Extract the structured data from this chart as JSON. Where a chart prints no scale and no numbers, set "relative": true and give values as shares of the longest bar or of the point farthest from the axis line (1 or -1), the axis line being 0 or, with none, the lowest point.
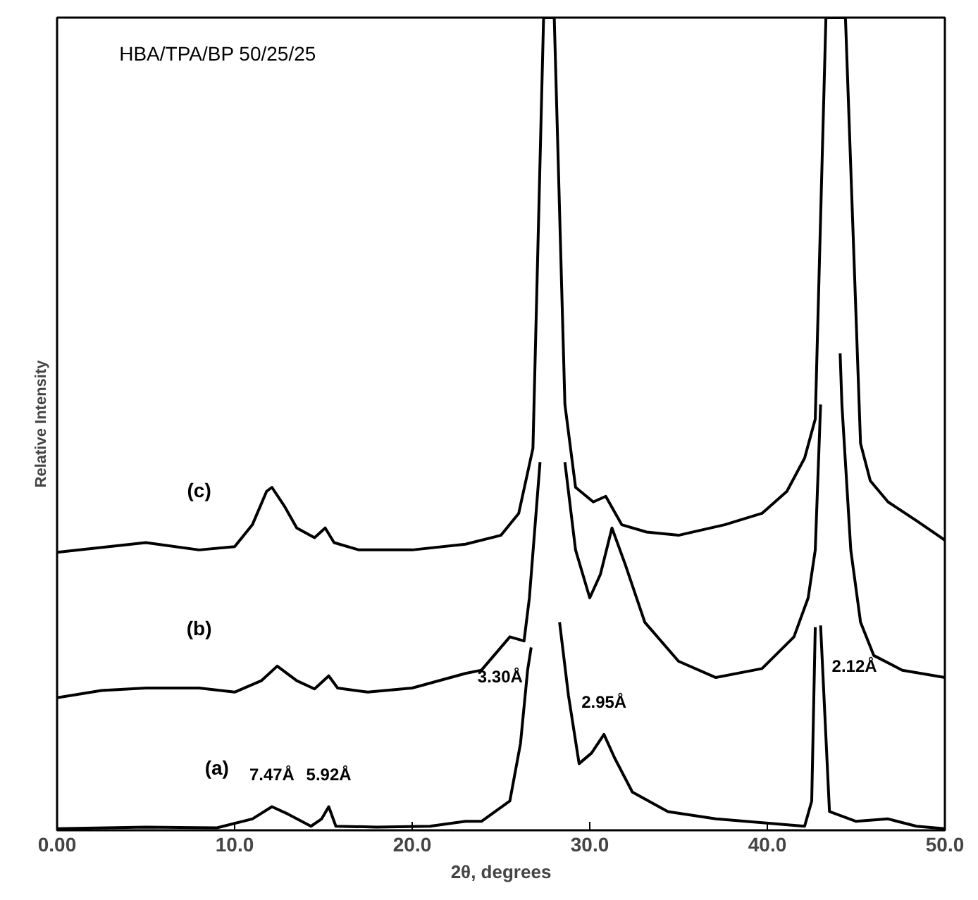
{
  "chart_data": {
    "type": "line",
    "title": "HBA/TPA/BP  50/25/25",
    "xlabel": "2θ, degrees",
    "ylabel": "Relative Intensity",
    "relative": true,
    "xlim": [
      0,
      50
    ],
    "xticks": [
      {
        "value": 0,
        "label": "0.00"
      },
      {
        "value": 10,
        "label": "10.0"
      },
      {
        "value": 20,
        "label": "20.0"
      },
      {
        "value": 30,
        "label": "30.0"
      },
      {
        "value": 40,
        "label": "40.0"
      },
      {
        "value": 50,
        "label": "50.0"
      }
    ],
    "grid": false,
    "marker": "none",
    "line_style": "solid",
    "series": [
      {
        "name": "(a)",
        "color": "#000000",
        "x": [
          0,
          5,
          9,
          11,
          12.1,
          13.0,
          14.3,
          14.9,
          15.3,
          15.7,
          18,
          21,
          23,
          23.9,
          25.5,
          26.1,
          26.5,
          26.7,
          27.5,
          28.3,
          28.8,
          29.4,
          30.1,
          30.8,
          31.4,
          32.4,
          34.4,
          37.1,
          42.1,
          42.5,
          42.7,
          42.85,
          43.0,
          43.5,
          45.0,
          46.8,
          48.4,
          50
        ],
        "values": [
          0.002,
          0.004,
          0.003,
          0.014,
          0.029,
          0.02,
          0.005,
          0.014,
          0.029,
          0.005,
          0.004,
          0.005,
          0.011,
          0.011,
          0.036,
          0.107,
          0.197,
          0.225,
          null,
          0.256,
          0.166,
          0.082,
          0.095,
          0.118,
          0.089,
          0.047,
          0.023,
          0.014,
          0.005,
          0.036,
          0.25,
          null,
          0.252,
          0.023,
          0.011,
          0.014,
          0.005,
          0.002
        ]
      },
      {
        "name": "(b)",
        "color": "#000000",
        "x": [
          0,
          2.5,
          5,
          8,
          10,
          11.5,
          12.4,
          13.5,
          14.5,
          15.3,
          15.8,
          17.5,
          20,
          23,
          23.9,
          25.5,
          26.3,
          26.6,
          27.2,
          27.9,
          28.6,
          29.2,
          30.0,
          30.6,
          31.25,
          32.0,
          33.1,
          35.0,
          37.1,
          39.7,
          41.5,
          42.3,
          42.7,
          43.0,
          43.5,
          44.1,
          44.2,
          44.7,
          45.25,
          46.0,
          47.6,
          50
        ],
        "values": [
          0.163,
          0.172,
          0.175,
          0.175,
          0.17,
          0.184,
          0.202,
          0.184,
          0.174,
          0.19,
          0.175,
          0.17,
          0.175,
          0.193,
          0.197,
          0.238,
          0.233,
          0.286,
          0.453,
          null,
          0.453,
          0.345,
          0.286,
          0.315,
          0.372,
          0.327,
          0.256,
          0.208,
          0.188,
          0.199,
          0.238,
          0.286,
          0.345,
          0.524,
          null,
          0.587,
          0.524,
          0.345,
          0.256,
          0.215,
          0.197,
          0.188
        ]
      },
      {
        "name": "(c)",
        "color": "#000000",
        "x": [
          0,
          5,
          8,
          10,
          11,
          11.8,
          12.1,
          12.8,
          13.5,
          14.5,
          15.1,
          15.6,
          17,
          20,
          23,
          25,
          26,
          26.8,
          27.4,
          28.0,
          28.6,
          29.2,
          30.2,
          30.9,
          31.8,
          33.2,
          35.0,
          37.6,
          39.7,
          41.1,
          42.1,
          42.7,
          43.3,
          44.4,
          45.25,
          45.8,
          46.8,
          48.4,
          50
        ],
        "values": [
          0.342,
          0.354,
          0.345,
          0.349,
          0.376,
          0.417,
          0.422,
          0.399,
          0.372,
          0.36,
          0.372,
          0.354,
          0.345,
          0.345,
          0.352,
          0.363,
          0.39,
          0.47,
          1,
          1,
          0.524,
          0.422,
          0.404,
          0.411,
          0.376,
          0.367,
          0.363,
          0.376,
          0.39,
          0.417,
          0.458,
          0.506,
          1,
          1,
          0.476,
          0.43,
          0.404,
          0.381,
          0.357
        ]
      }
    ],
    "annotations": [
      {
        "text": "7.47Å",
        "x": 12.1,
        "y": 0.029
      },
      {
        "text": "5.92Å",
        "x": 15.3,
        "y": 0.029
      },
      {
        "text": "3.30Å",
        "x": 26.7,
        "y": 0.225
      },
      {
        "text": "2.95Å",
        "x": 30.8,
        "y": 0.118
      },
      {
        "text": "2.12Å",
        "x": 43.0,
        "y": 0.252
      }
    ]
  }
}
